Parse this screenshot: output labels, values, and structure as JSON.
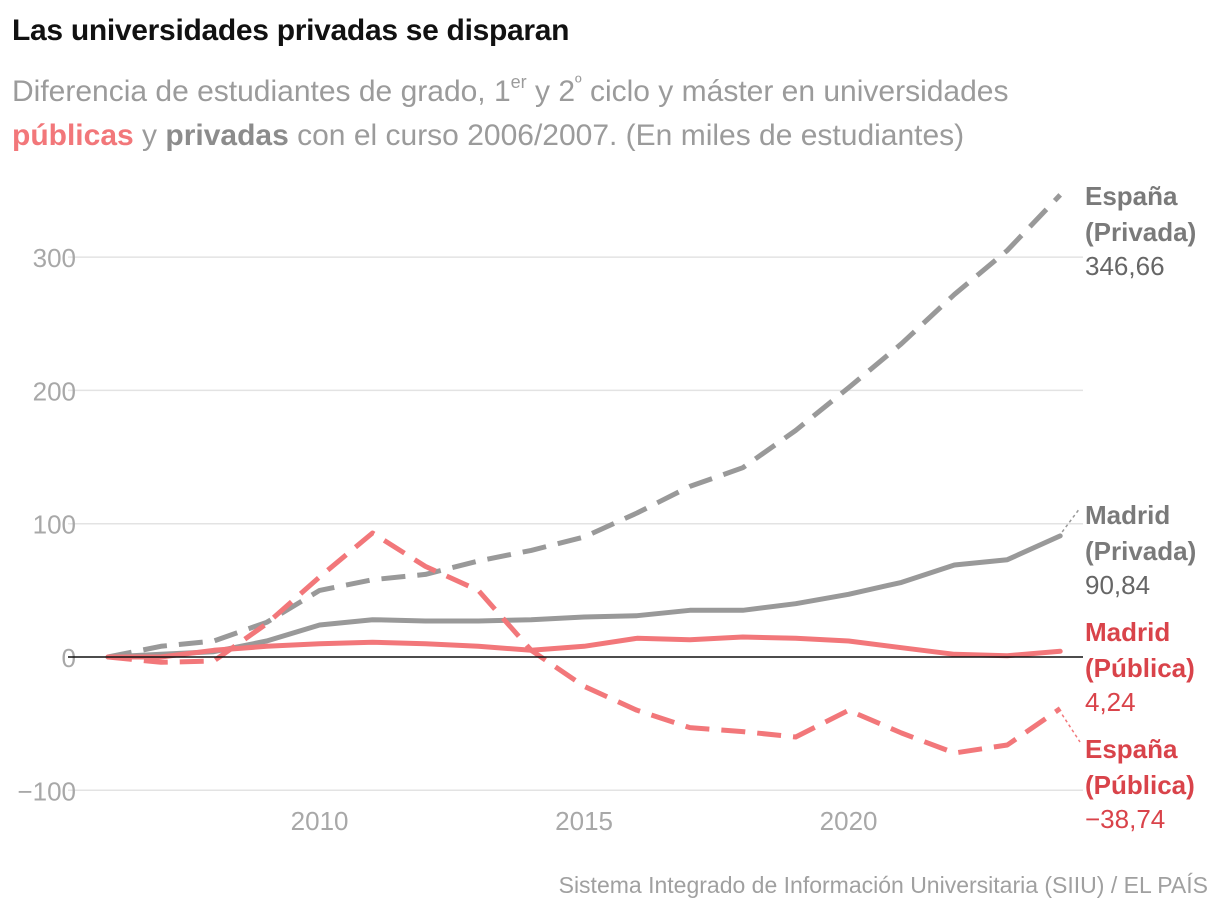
{
  "header": {
    "title": "Las universidades privadas se disparan",
    "subtitle_part1": "Diferencia de estudiantes de grado, 1",
    "subtitle_sup1": "er",
    "subtitle_part2": " y 2",
    "subtitle_sup2": "º",
    "subtitle_part3": " ciclo y máster en universidades",
    "subtitle_publicas": "públicas",
    "subtitle_y": " y ",
    "subtitle_privadas": "privadas",
    "subtitle_part4": " con el curso 2006/2007. (En miles de estudiantes)"
  },
  "source": "Sistema Integrado de Información Universitaria (SIIU) / EL PAÍS",
  "colors": {
    "publica": "#f2777a",
    "publica_text": "#d9434a",
    "privada": "#999999",
    "privada_text": "#7a7a7a",
    "grid": "#e3e3e3",
    "axis_text": "#a8a8a8",
    "zero_line": "#111111"
  },
  "chart_data": {
    "type": "line",
    "title": "Las universidades privadas se disparan",
    "xlabel": "",
    "ylabel": "",
    "xlim": [
      2006,
      2024
    ],
    "ylim": [
      -100,
      350
    ],
    "x_ticks": [
      2010,
      2015,
      2020
    ],
    "x_tick_labels": [
      "2010",
      "2015",
      "2020"
    ],
    "y_ticks": [
      -100,
      0,
      100,
      200,
      300
    ],
    "y_tick_labels": [
      "−100",
      "0",
      "100",
      "200",
      "300"
    ],
    "x": [
      2006,
      2007,
      2008,
      2009,
      2010,
      2011,
      2012,
      2013,
      2014,
      2015,
      2016,
      2017,
      2018,
      2019,
      2020,
      2021,
      2022,
      2023,
      2024
    ],
    "series": [
      {
        "name": "España (Privada)",
        "label_line1": "España",
        "label_line2": "(Privada)",
        "value_label": "346,66",
        "style": "dashed",
        "group": "privada",
        "values": [
          0,
          8,
          12,
          26,
          50,
          58,
          62,
          72,
          80,
          90,
          108,
          128,
          142,
          170,
          202,
          235,
          272,
          305,
          346.66
        ]
      },
      {
        "name": "Madrid (Privada)",
        "label_line1": "Madrid",
        "label_line2": "(Privada)",
        "value_label": "90,84",
        "style": "solid",
        "group": "privada",
        "values": [
          0,
          2,
          4,
          12,
          24,
          28,
          27,
          27,
          28,
          30,
          31,
          35,
          35,
          40,
          47,
          56,
          69,
          73,
          90.84
        ]
      },
      {
        "name": "Madrid (Pública)",
        "label_line1": "Madrid",
        "label_line2": "(Pública)",
        "value_label": "4,24",
        "style": "solid",
        "group": "publica",
        "values": [
          0,
          0,
          5,
          8,
          10,
          11,
          10,
          8,
          5,
          8,
          14,
          13,
          15,
          14,
          12,
          7,
          2,
          1,
          4.24
        ]
      },
      {
        "name": "España (Pública)",
        "label_line1": "España",
        "label_line2": "(Pública)",
        "value_label": "−38,74",
        "style": "dashed",
        "group": "publica",
        "values": [
          0,
          -4,
          -3,
          25,
          60,
          93,
          68,
          50,
          5,
          -22,
          -40,
          -53,
          -56,
          -60,
          -40,
          -57,
          -72,
          -66,
          -38.74
        ]
      }
    ]
  }
}
